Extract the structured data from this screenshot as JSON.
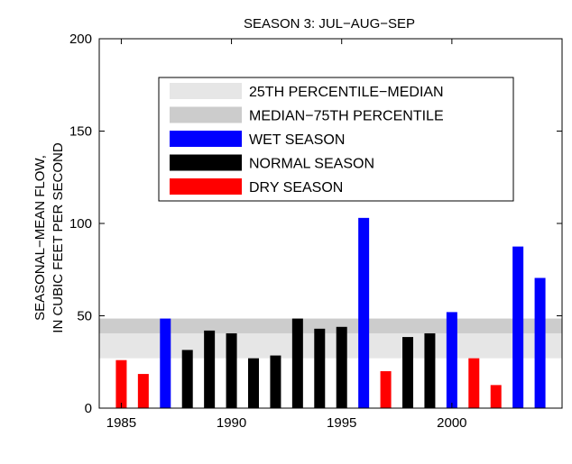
{
  "chart_data": {
    "type": "bar",
    "title": "SEASON 3: JUL−AUG−SEP",
    "ylabel_lines": [
      "SEASONAL−MEAN FLOW,",
      "IN CUBIC FEET PER SECOND"
    ],
    "xlabel": "",
    "xlim": [
      1984,
      2005
    ],
    "ylim": [
      0,
      200
    ],
    "xticks": [
      1985,
      1990,
      1995,
      2000
    ],
    "yticks": [
      0,
      50,
      100,
      150,
      200
    ],
    "bands": [
      {
        "name": "25TH PERCENTILE−MEDIAN",
        "from": 27,
        "to": 40.5,
        "color": "#e6e6e6"
      },
      {
        "name": "MEDIAN−75TH PERCENTILE",
        "from": 40.5,
        "to": 48.5,
        "color": "#cccccc"
      }
    ],
    "legend": [
      {
        "label": "25TH PERCENTILE−MEDIAN",
        "color": "#e6e6e6"
      },
      {
        "label": "MEDIAN−75TH PERCENTILE",
        "color": "#cccccc"
      },
      {
        "label": "WET SEASON",
        "color": "#0000ff"
      },
      {
        "label": "NORMAL SEASON",
        "color": "#000000"
      },
      {
        "label": "DRY SEASON",
        "color": "#ff0000"
      }
    ],
    "legend_position": "top-left",
    "grid": false,
    "bars": [
      {
        "year": 1985,
        "value": 26,
        "class": "dry"
      },
      {
        "year": 1986,
        "value": 18.5,
        "class": "dry"
      },
      {
        "year": 1987,
        "value": 48.5,
        "class": "wet"
      },
      {
        "year": 1988,
        "value": 31.5,
        "class": "normal"
      },
      {
        "year": 1989,
        "value": 42,
        "class": "normal"
      },
      {
        "year": 1990,
        "value": 40.5,
        "class": "normal"
      },
      {
        "year": 1991,
        "value": 27,
        "class": "normal"
      },
      {
        "year": 1992,
        "value": 28.5,
        "class": "normal"
      },
      {
        "year": 1993,
        "value": 48.5,
        "class": "normal"
      },
      {
        "year": 1994,
        "value": 43,
        "class": "normal"
      },
      {
        "year": 1995,
        "value": 44,
        "class": "normal"
      },
      {
        "year": 1996,
        "value": 103,
        "class": "wet"
      },
      {
        "year": 1997,
        "value": 20,
        "class": "dry"
      },
      {
        "year": 1998,
        "value": 38.5,
        "class": "normal"
      },
      {
        "year": 1999,
        "value": 40.5,
        "class": "normal"
      },
      {
        "year": 2000,
        "value": 52,
        "class": "wet"
      },
      {
        "year": 2001,
        "value": 27,
        "class": "dry"
      },
      {
        "year": 2002,
        "value": 12.5,
        "class": "dry"
      },
      {
        "year": 2003,
        "value": 87.5,
        "class": "wet"
      },
      {
        "year": 2004,
        "value": 70.5,
        "class": "wet"
      }
    ],
    "colors": {
      "wet": "#0000ff",
      "normal": "#000000",
      "dry": "#ff0000"
    }
  }
}
